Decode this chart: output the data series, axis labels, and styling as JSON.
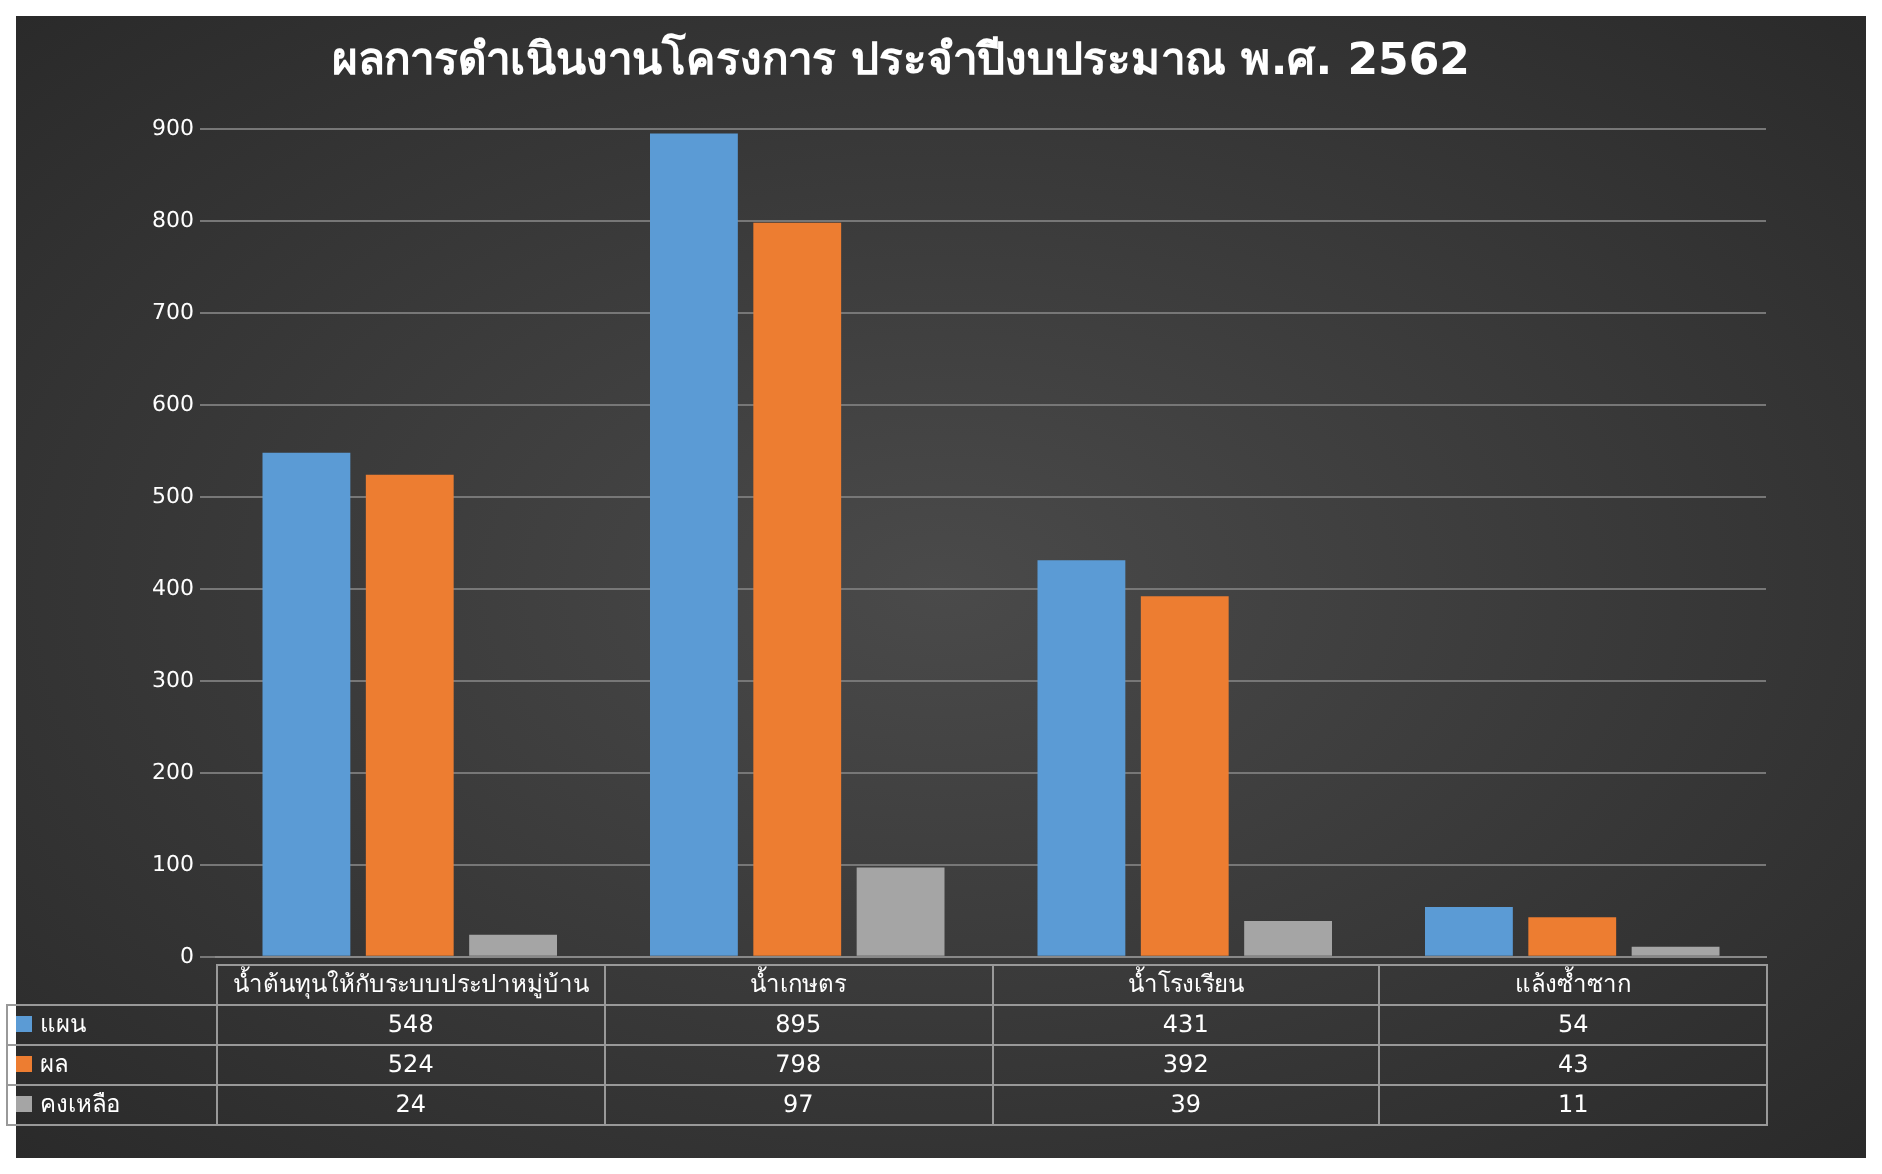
{
  "chart_data": {
    "type": "bar",
    "title": "ผลการดำเนินงานโครงการ ประจำปีงบประมาณ พ.ศ. 2562",
    "categories": [
      "น้ำต้นทุนให้กับระบบประปาหมู่บ้าน",
      "น้ำเกษตร",
      "น้ำโรงเรียน",
      "แล้งซ้ำซาก"
    ],
    "series": [
      {
        "name": "แผน",
        "color": "#5b9bd5",
        "values": [
          548,
          895,
          431,
          54
        ]
      },
      {
        "name": "ผล",
        "color": "#ed7d31",
        "values": [
          524,
          798,
          392,
          43
        ]
      },
      {
        "name": "คงเหลือ",
        "color": "#a5a5a5",
        "values": [
          24,
          97,
          39,
          11
        ]
      }
    ],
    "ylim": [
      0,
      900
    ],
    "yticks": [
      0,
      100,
      200,
      300,
      400,
      500,
      600,
      700,
      800,
      900
    ],
    "grid": "y",
    "legend": "bottom",
    "data_labels": true
  }
}
